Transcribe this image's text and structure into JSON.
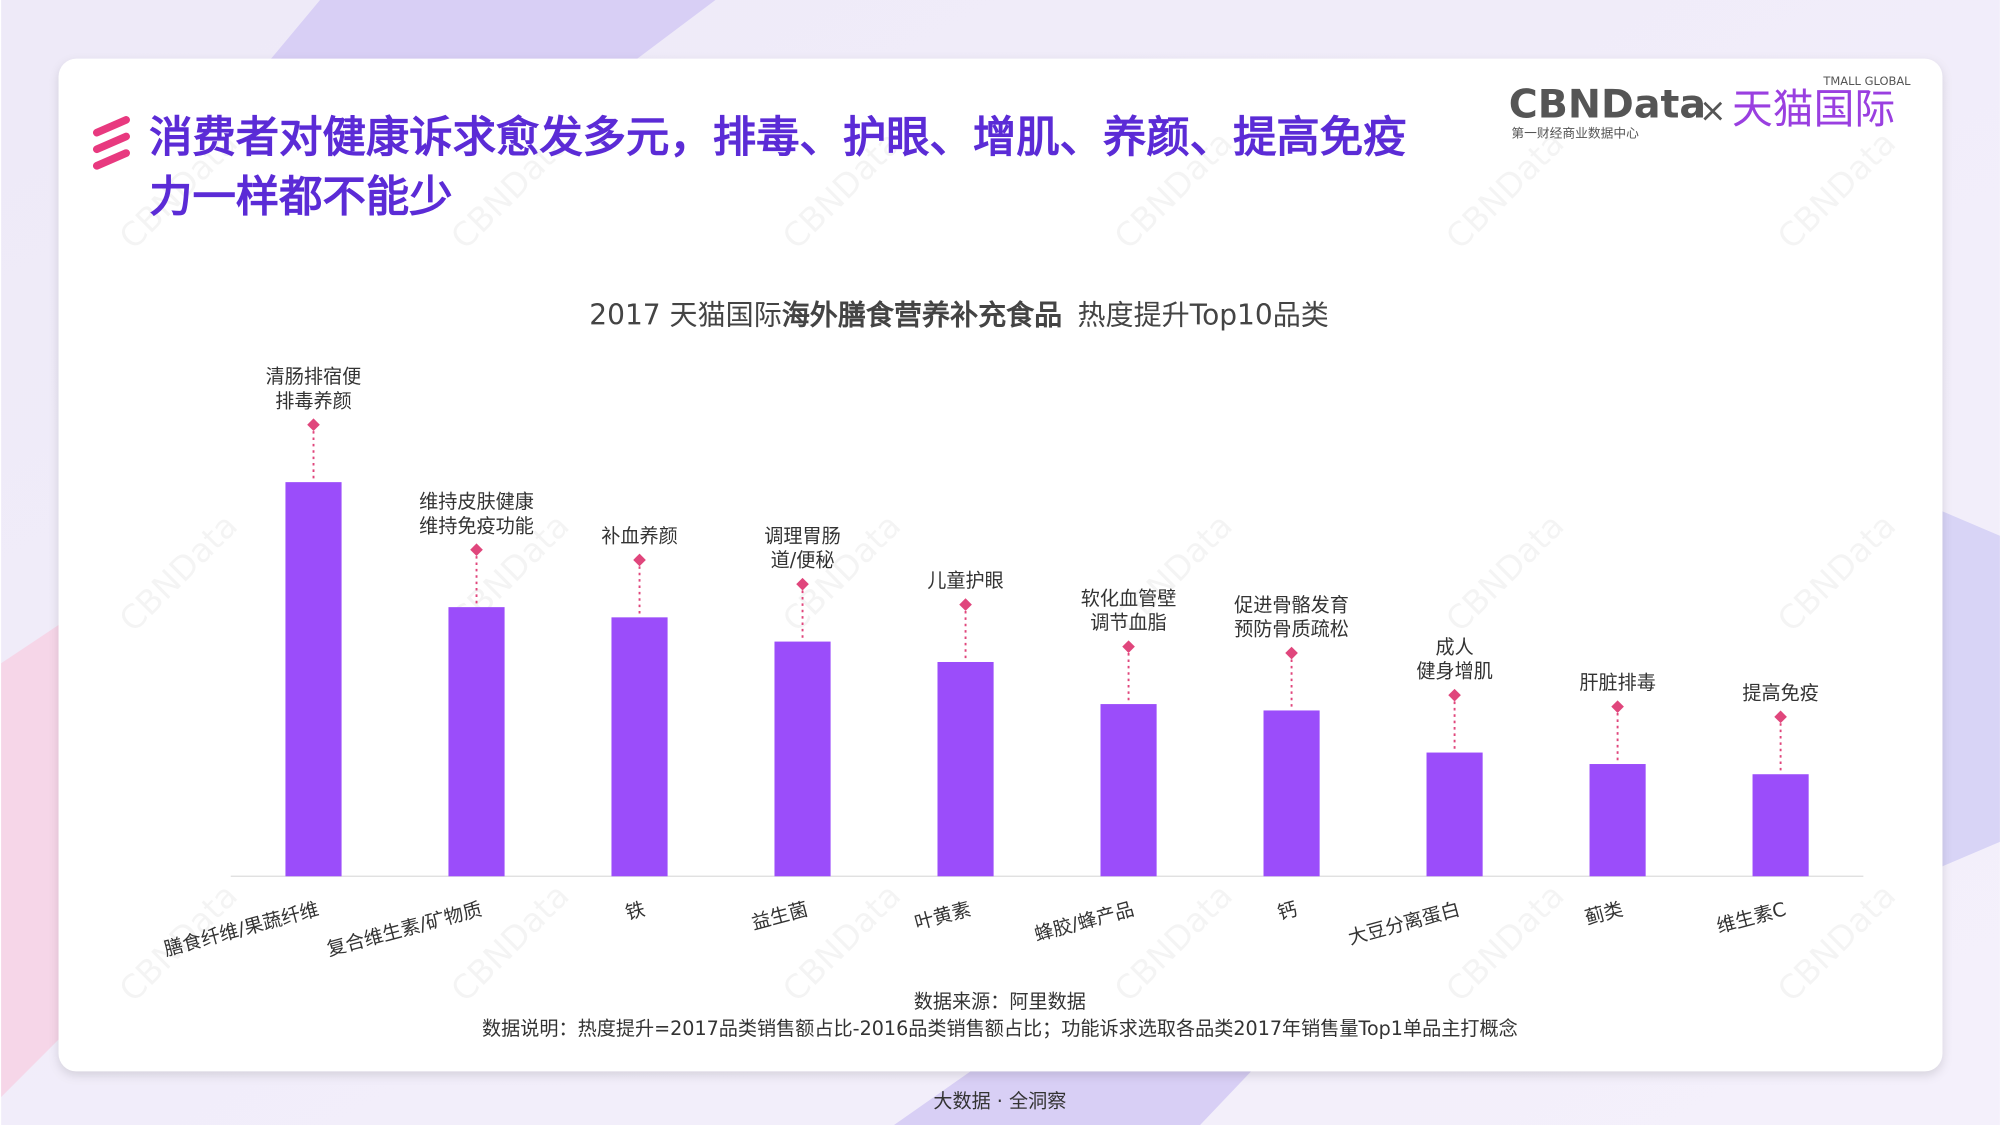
{
  "header": {
    "title_lines": [
      "消费者对健康诉求愈发多元，排毒、护眼、增肌、养颜、提高免疫",
      "力一样都不能少"
    ],
    "logo": "CBNData",
    "logo_sub": "第一财经商业数据中心",
    "times": "×",
    "partner": "天猫国际",
    "partner_sub": "TMALL GLOBAL"
  },
  "watermark": "CBNData",
  "chart_data": {
    "type": "bar",
    "title": [
      "2017 天猫国际",
      "海外膳食营养补充食品",
      "热度提升Top10品类"
    ],
    "categories": [
      "膳食纤维/果蔬纤维",
      "复合维生素/矿物质",
      "铁",
      "益生菌",
      "叶黄素",
      "蜂胶/蜂产品",
      "钙",
      "大豆分离蛋白",
      "蓟类",
      "维生素C"
    ],
    "values": [
      309,
      211,
      203,
      184,
      168,
      135,
      130,
      97,
      88,
      80
    ],
    "annotations": [
      [
        "清肠排宿便",
        "排毒养颜"
      ],
      [
        "维持皮肤健康",
        "维持免疫功能"
      ],
      [
        "补血养颜"
      ],
      [
        "调理胃肠",
        "道/便秘"
      ],
      [
        "儿童护眼"
      ],
      [
        "软化血管壁",
        "调节血脂"
      ],
      [
        "促进骨骼发育",
        "预防骨质疏松"
      ],
      [
        "成人",
        "健身增肌"
      ],
      [
        "肝脏排毒"
      ],
      [
        "提高免疫"
      ]
    ],
    "color": "#9b4dfa",
    "annotation_color": "#e0467c"
  },
  "notes": [
    "数据来源：阿里数据",
    "数据说明：热度提升=2017品类销售额占比-2016品类销售额占比；功能诉求选取各品类2017年销售量Top1单品主打概念"
  ],
  "footer": "大数据 · 全洞察"
}
